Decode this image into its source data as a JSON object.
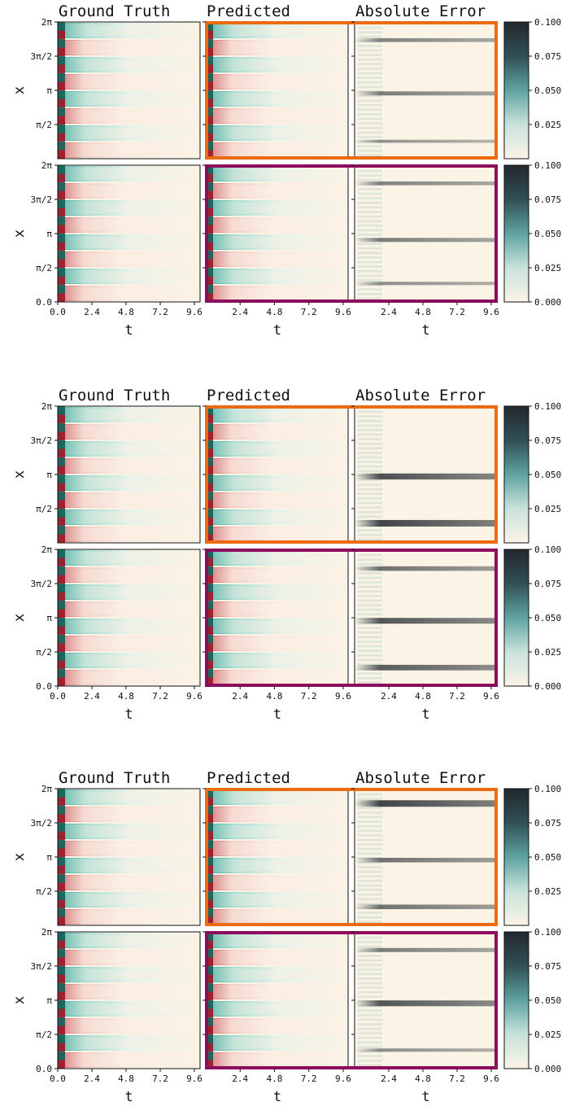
{
  "figure": {
    "panel_titles": [
      "Ground Truth",
      "Predicted",
      "Absolute Error"
    ],
    "frame_colors": [
      "#ec6a10",
      "#8d0d5c"
    ]
  },
  "chart_data": [
    {
      "type": "heatmap",
      "group": 1,
      "xlabel": "t",
      "ylabel": "x",
      "x_ticks": [
        "0.0",
        "2.4",
        "4.8",
        "7.2",
        "9.6"
      ],
      "x_ticks_no_zero": [
        "2.4",
        "4.8",
        "7.2",
        "9.6"
      ],
      "y_ticks_top": [
        "2π",
        "3π/2",
        "π",
        "π/2"
      ],
      "y_ticks_bottom": [
        "2π",
        "3π/2",
        "π",
        "π/2",
        "0.0"
      ],
      "xlim": [
        0,
        10
      ],
      "ylim": [
        0,
        6.283
      ],
      "colorbar_top": [
        "0.100",
        "0.075",
        "0.050",
        "0.025"
      ],
      "colorbar_bottom": [
        "0.100",
        "0.075",
        "0.050",
        "0.025",
        "0.000"
      ],
      "colorbar_range": [
        0,
        0.1
      ],
      "error_lines_top": [
        {
          "y": 5.45,
          "s": 0.45
        },
        {
          "y": 3.0,
          "s": 0.5
        },
        {
          "y": 0.8,
          "s": 0.3
        }
      ],
      "error_lines_bottom": [
        {
          "y": 5.45,
          "s": 0.45
        },
        {
          "y": 2.85,
          "s": 0.5
        },
        {
          "y": 0.85,
          "s": 0.35
        }
      ]
    },
    {
      "type": "heatmap",
      "group": 2,
      "xlabel": "t",
      "ylabel": "x",
      "x_ticks": [
        "0.0",
        "2.4",
        "4.8",
        "7.2",
        "9.6"
      ],
      "x_ticks_no_zero": [
        "2.4",
        "4.8",
        "7.2",
        "9.6"
      ],
      "y_ticks_top": [
        "2π",
        "3π/2",
        "π",
        "π/2"
      ],
      "y_ticks_bottom": [
        "2π",
        "3π/2",
        "π",
        "π/2",
        "0.0"
      ],
      "xlim": [
        0,
        10
      ],
      "ylim": [
        0,
        6.283
      ],
      "colorbar_top": [
        "0.100",
        "0.075",
        "0.050",
        "0.025"
      ],
      "colorbar_bottom": [
        "0.100",
        "0.075",
        "0.050",
        "0.025",
        "0.000"
      ],
      "colorbar_range": [
        0,
        0.1
      ],
      "error_lines_top": [
        {
          "y": 3.05,
          "s": 0.9
        },
        {
          "y": 0.9,
          "s": 1.0
        }
      ],
      "error_lines_bottom": [
        {
          "y": 5.4,
          "s": 0.6
        },
        {
          "y": 3.0,
          "s": 0.85
        },
        {
          "y": 0.85,
          "s": 0.8
        }
      ]
    },
    {
      "type": "heatmap",
      "group": 3,
      "xlabel": "t",
      "ylabel": "x",
      "x_ticks": [
        "0.0",
        "2.4",
        "4.8",
        "7.2",
        "9.6"
      ],
      "x_ticks_no_zero": [
        "2.4",
        "4.8",
        "7.2",
        "9.6"
      ],
      "y_ticks_top": [
        "2π",
        "3π/2",
        "π",
        "π/2"
      ],
      "y_ticks_bottom": [
        "2π",
        "3π/2",
        "π",
        "π/2",
        "0.0"
      ],
      "xlim": [
        0,
        10
      ],
      "ylim": [
        0,
        6.283
      ],
      "colorbar_top": [
        "0.100",
        "0.075",
        "0.050",
        "0.025"
      ],
      "colorbar_bottom": [
        "0.100",
        "0.075",
        "0.050",
        "0.025",
        "0.000"
      ],
      "colorbar_range": [
        0,
        0.1
      ],
      "error_lines_top": [
        {
          "y": 5.6,
          "s": 1.0
        },
        {
          "y": 3.0,
          "s": 0.6
        },
        {
          "y": 0.85,
          "s": 0.6
        }
      ],
      "error_lines_bottom": [
        {
          "y": 5.45,
          "s": 0.5
        },
        {
          "y": 3.0,
          "s": 0.85
        },
        {
          "y": 0.85,
          "s": 0.35
        }
      ]
    }
  ]
}
